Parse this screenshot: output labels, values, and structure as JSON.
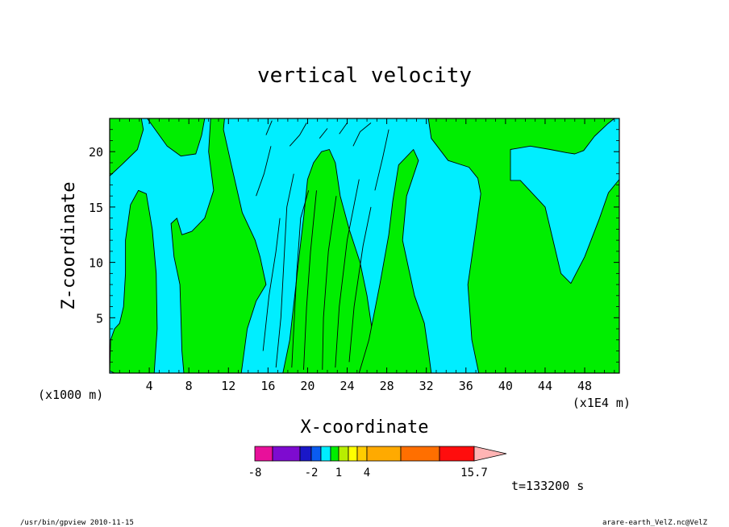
{
  "chart_data": {
    "type": "heatmap",
    "title": "vertical velocity",
    "xlabel": "X-coordinate",
    "ylabel": "Z-coordinate",
    "x_unit_left": "(x1000 m)",
    "x_unit_right": "(x1E4 m)",
    "xlim": [
      0,
      51.5
    ],
    "ylim": [
      0,
      23
    ],
    "xticks": [
      "4",
      "8",
      "12",
      "16",
      "20",
      "24",
      "28",
      "32",
      "36",
      "40",
      "44",
      "48"
    ],
    "xtick_values": [
      4,
      8,
      12,
      16,
      20,
      24,
      28,
      32,
      36,
      40,
      44,
      48
    ],
    "yticks": [
      "5",
      "10",
      "15",
      "20"
    ],
    "ytick_values": [
      5,
      10,
      15,
      20
    ],
    "background_color": "#00eeff",
    "field_color": "#00ee00",
    "green_regions": [
      {
        "name": "left-column",
        "points": [
          [
            0,
            0.2
          ],
          [
            0.5,
            0
          ],
          [
            4.5,
            0
          ],
          [
            4.8,
            4
          ],
          [
            4.7,
            9
          ],
          [
            4.3,
            13
          ],
          [
            3.7,
            16.2
          ],
          [
            2.9,
            16.5
          ],
          [
            2.1,
            15.2
          ],
          [
            1.6,
            12
          ],
          [
            1.6,
            9
          ],
          [
            1.4,
            6
          ],
          [
            1,
            4.5
          ],
          [
            0.5,
            4
          ],
          [
            0.1,
            3
          ]
        ]
      },
      {
        "name": "upper-left-band",
        "points": [
          [
            0,
            17.8
          ],
          [
            1.2,
            18.8
          ],
          [
            2.8,
            20.2
          ],
          [
            3.4,
            22
          ],
          [
            3.2,
            23
          ],
          [
            0,
            23
          ]
        ]
      },
      {
        "name": "upper-strip",
        "points": [
          [
            3.8,
            23
          ],
          [
            5.8,
            20.5
          ],
          [
            7.2,
            19.6
          ],
          [
            8.7,
            19.8
          ],
          [
            9.3,
            21.5
          ],
          [
            9.6,
            23
          ]
        ]
      },
      {
        "name": "center-left-block",
        "points": [
          [
            7.5,
            0
          ],
          [
            13.3,
            0
          ],
          [
            13.9,
            4
          ],
          [
            14.8,
            6.5
          ],
          [
            15.8,
            8
          ],
          [
            15.2,
            10.5
          ],
          [
            14.7,
            12
          ],
          [
            13.4,
            14.5
          ],
          [
            12.3,
            18.8
          ],
          [
            11.5,
            22
          ],
          [
            11.6,
            23
          ],
          [
            10.2,
            23
          ],
          [
            10,
            20
          ],
          [
            10.5,
            16.5
          ],
          [
            9.6,
            14
          ],
          [
            8.3,
            12.8
          ],
          [
            7.3,
            12.5
          ],
          [
            6.8,
            14
          ],
          [
            6.2,
            13.5
          ],
          [
            6.5,
            10.5
          ],
          [
            7.1,
            8
          ],
          [
            7.2,
            5
          ],
          [
            7.3,
            2
          ]
        ]
      },
      {
        "name": "central-plume",
        "points": [
          [
            17.5,
            0
          ],
          [
            18.2,
            3
          ],
          [
            18.7,
            7
          ],
          [
            19.2,
            11
          ],
          [
            19.6,
            14
          ],
          [
            20,
            17.5
          ],
          [
            20.6,
            19
          ],
          [
            21.4,
            20
          ],
          [
            22.2,
            20.2
          ],
          [
            22.8,
            19
          ],
          [
            23.3,
            16
          ],
          [
            24.2,
            13
          ],
          [
            25.3,
            10
          ],
          [
            26,
            7
          ],
          [
            26.5,
            4
          ],
          [
            26.8,
            0
          ]
        ]
      },
      {
        "name": "right-plume",
        "points": [
          [
            25.2,
            0
          ],
          [
            26.2,
            3
          ],
          [
            27.3,
            8
          ],
          [
            28.2,
            12.5
          ],
          [
            28.6,
            15.5
          ],
          [
            29.2,
            18.8
          ],
          [
            30.7,
            20.2
          ],
          [
            31.2,
            19.2
          ],
          [
            30,
            16
          ],
          [
            29.6,
            12
          ],
          [
            30.8,
            7
          ],
          [
            31.8,
            4.5
          ],
          [
            32.2,
            2
          ],
          [
            32.5,
            0
          ]
        ]
      },
      {
        "name": "upper-right-mass",
        "points": [
          [
            32.2,
            23
          ],
          [
            32.5,
            21.2
          ],
          [
            34.2,
            19.2
          ],
          [
            36.3,
            18.6
          ],
          [
            37.2,
            17.6
          ],
          [
            37.5,
            16.2
          ],
          [
            37,
            13
          ],
          [
            36.2,
            8
          ],
          [
            36.6,
            3
          ],
          [
            37.3,
            0
          ],
          [
            51.5,
            0
          ],
          [
            51.5,
            17.5
          ],
          [
            50.4,
            16.3
          ],
          [
            49.5,
            14
          ],
          [
            48,
            10.5
          ],
          [
            46.6,
            8.1
          ],
          [
            45.6,
            9
          ],
          [
            44.8,
            12
          ],
          [
            44,
            15
          ],
          [
            41.5,
            17.4
          ],
          [
            40.5,
            17.4
          ],
          [
            40.5,
            20.2
          ],
          [
            42.5,
            20.5
          ],
          [
            44.5,
            20.2
          ],
          [
            46.2,
            19.9
          ],
          [
            47,
            19.8
          ],
          [
            47.9,
            20.1
          ],
          [
            49,
            21.4
          ],
          [
            50.3,
            22.5
          ],
          [
            51,
            23
          ]
        ]
      }
    ],
    "contour_lines": [
      [
        [
          16.8,
          0.5
        ],
        [
          17.3,
          5
        ],
        [
          17.6,
          10
        ],
        [
          17.9,
          15
        ],
        [
          18.6,
          18
        ]
      ],
      [
        [
          18.4,
          0.5
        ],
        [
          18.6,
          4
        ],
        [
          18.9,
          9
        ],
        [
          19.3,
          14
        ],
        [
          20.1,
          16.5
        ]
      ],
      [
        [
          19.6,
          0.3
        ],
        [
          19.9,
          6
        ],
        [
          20.3,
          11
        ],
        [
          20.9,
          16.5
        ]
      ],
      [
        [
          21.5,
          0.3
        ],
        [
          21.6,
          5
        ],
        [
          22.1,
          11
        ],
        [
          22.9,
          16
        ]
      ],
      [
        [
          22.8,
          0.5
        ],
        [
          23.2,
          6
        ],
        [
          24,
          12
        ],
        [
          25.2,
          17.5
        ]
      ],
      [
        [
          24.2,
          1
        ],
        [
          24.7,
          6
        ],
        [
          25.6,
          11.5
        ],
        [
          26.4,
          15
        ]
      ],
      [
        [
          15.5,
          2
        ],
        [
          16.1,
          7
        ],
        [
          16.8,
          11
        ],
        [
          17.2,
          14
        ]
      ],
      [
        [
          14.8,
          16
        ],
        [
          15.6,
          18
        ],
        [
          16.3,
          20.5
        ]
      ],
      [
        [
          18.2,
          20.5
        ],
        [
          19.2,
          21.5
        ],
        [
          19.9,
          22.6
        ]
      ],
      [
        [
          21.2,
          21.2
        ],
        [
          22,
          22.1
        ]
      ],
      [
        [
          23.2,
          21.6
        ],
        [
          24,
          22.6
        ]
      ],
      [
        [
          24.6,
          20.5
        ],
        [
          25.3,
          21.8
        ],
        [
          26.4,
          22.6
        ]
      ],
      [
        [
          26.8,
          16.5
        ],
        [
          27.6,
          19.5
        ],
        [
          28.2,
          22
        ]
      ],
      [
        [
          15.8,
          21.5
        ],
        [
          16.4,
          22.8
        ]
      ]
    ],
    "colorbar": {
      "levels": [
        "-8",
        "-2",
        "1",
        "4",
        "15.7"
      ],
      "colors": [
        "#e8109a",
        "#7e0bd0",
        "#1a17c8",
        "#0a5cf0",
        "#00eeff",
        "#00ee00",
        "#b8ee00",
        "#ffff00",
        "#ffcc00",
        "#ffaa00",
        "#ff6f00",
        "#ff0d0d",
        "#ff7777"
      ],
      "extend_color": "#ffb4b4"
    },
    "time_label": "t=133200 s"
  },
  "footer": {
    "left": "/usr/bin/gpview   2010-11-15",
    "right": "arare-earth_VelZ.nc@VelZ"
  }
}
